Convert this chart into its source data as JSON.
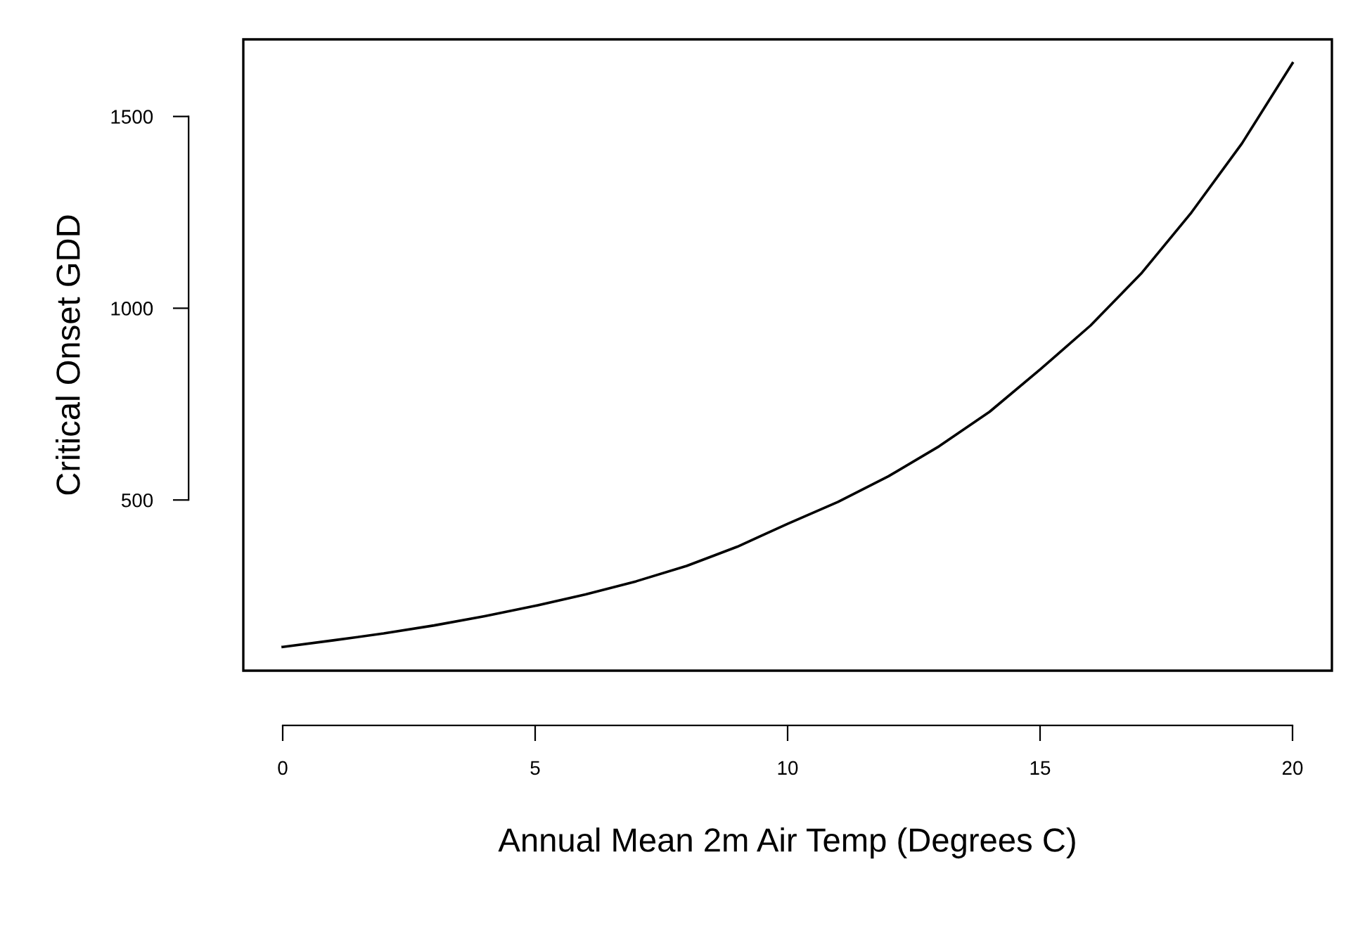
{
  "chart_data": {
    "type": "line",
    "xlabel": "Annual Mean 2m Air Temp (Degrees C)",
    "ylabel": "Critical Onset GDD",
    "x": [
      0,
      1,
      2,
      3,
      4,
      5,
      6,
      7,
      8,
      9,
      10,
      11,
      12,
      13,
      14,
      15,
      16,
      17,
      18,
      19,
      20
    ],
    "series": [
      {
        "color": "#000000",
        "values": [
          117,
          134,
          152,
          173,
          197,
          224,
          254,
          288,
          328,
          378,
          438,
          495,
          562,
          640,
          730,
          840,
          955,
          1090,
          1250,
          1430,
          1639
        ]
      }
    ],
    "xlim": [
      -0.78,
      20.78
    ],
    "ylim": [
      55,
      1701
    ],
    "xticks": [
      0,
      5,
      10,
      15,
      20
    ],
    "yticks": [
      500,
      1000,
      1500
    ],
    "grid": false,
    "legend": false,
    "marker": "none",
    "line_style": "solid"
  }
}
